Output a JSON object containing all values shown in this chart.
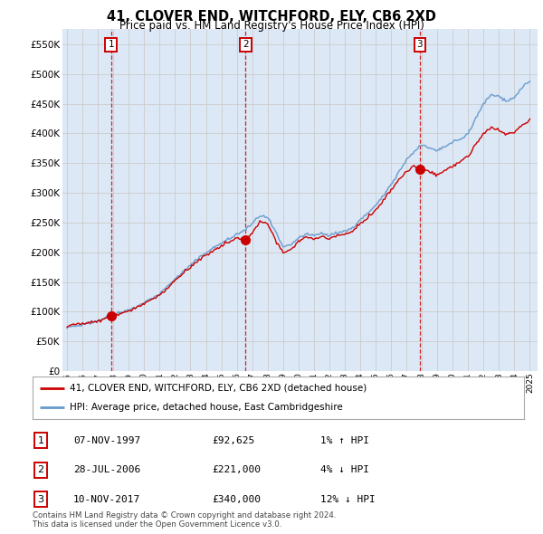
{
  "title": "41, CLOVER END, WITCHFORD, ELY, CB6 2XD",
  "subtitle": "Price paid vs. HM Land Registry's House Price Index (HPI)",
  "ytick_vals": [
    0,
    50000,
    100000,
    150000,
    200000,
    250000,
    300000,
    350000,
    400000,
    450000,
    500000,
    550000
  ],
  "ylim": [
    0,
    575000
  ],
  "xlim_start": 1994.7,
  "xlim_end": 2025.5,
  "sale_dates": [
    1997.85,
    2006.57,
    2017.86
  ],
  "sale_prices": [
    92625,
    221000,
    340000
  ],
  "sale_labels": [
    "1",
    "2",
    "3"
  ],
  "legend_line1": "41, CLOVER END, WITCHFORD, ELY, CB6 2XD (detached house)",
  "legend_line2": "HPI: Average price, detached house, East Cambridgeshire",
  "table_rows": [
    [
      "1",
      "07-NOV-1997",
      "£92,625",
      "1% ↑ HPI"
    ],
    [
      "2",
      "28-JUL-2006",
      "£221,000",
      "4% ↓ HPI"
    ],
    [
      "3",
      "10-NOV-2017",
      "£340,000",
      "12% ↓ HPI"
    ]
  ],
  "footer": "Contains HM Land Registry data © Crown copyright and database right 2024.\nThis data is licensed under the Open Government Licence v3.0.",
  "line_color_sales": "#cc0000",
  "line_color_hpi": "#6699cc",
  "dot_color": "#cc0000",
  "vline_color": "#cc0000",
  "grid_color": "#cccccc",
  "background_color": "#ffffff",
  "plot_bg_color": "#dce8f5",
  "xtick_years": [
    1995,
    1996,
    1997,
    1998,
    1999,
    2000,
    2001,
    2002,
    2003,
    2004,
    2005,
    2006,
    2007,
    2008,
    2009,
    2010,
    2011,
    2012,
    2013,
    2014,
    2015,
    2016,
    2017,
    2018,
    2019,
    2020,
    2021,
    2022,
    2023,
    2024,
    2025
  ]
}
